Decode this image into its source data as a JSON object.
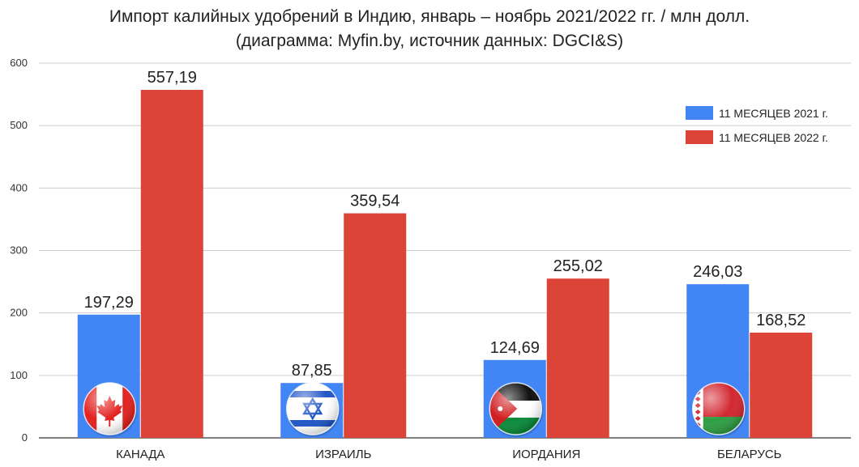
{
  "chart_data": {
    "type": "bar",
    "title": "Импорт калийных удобрений в Индию, январь – ноябрь 2021/2022 гг. / млн долл.",
    "subtitle": "(диаграмма: Myfin.by, источник данных: DGCI&S)",
    "xlabel": "",
    "ylabel": "",
    "ylim": [
      0,
      600
    ],
    "yticks": [
      0,
      100,
      200,
      300,
      400,
      500,
      600
    ],
    "grid": true,
    "legend_position": "top-right",
    "categories": [
      "КАНАДА",
      "ИЗРАИЛЬ",
      "ИОРДАНИЯ",
      "БЕЛАРУСЬ"
    ],
    "value_labels": [
      [
        "197,29",
        "87,85",
        "124,69",
        "246,03"
      ],
      [
        "557,19",
        "359,54",
        "255,02",
        "168,52"
      ]
    ],
    "series": [
      {
        "name": "11 МЕСЯЦЕВ 2021 г.",
        "color": "#4285f4",
        "values": [
          197.29,
          87.85,
          124.69,
          246.03
        ]
      },
      {
        "name": "11 МЕСЯЦЕВ 2022 г.",
        "color": "#db4437",
        "values": [
          557.19,
          359.54,
          255.02,
          168.52
        ]
      }
    ],
    "flags": [
      "canada-flag-icon",
      "israel-flag-icon",
      "jordan-flag-icon",
      "belarus-flag-icon"
    ]
  }
}
